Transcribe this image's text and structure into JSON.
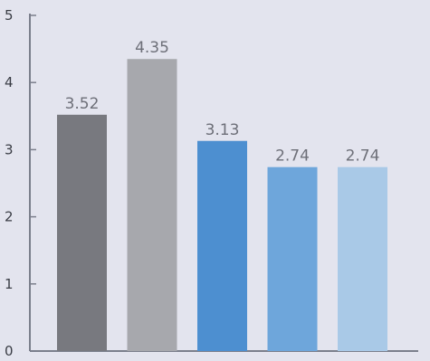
{
  "chart_data": {
    "type": "bar",
    "title": "",
    "xlabel": "",
    "ylabel": "",
    "categories": [
      "",
      "",
      "",
      "",
      ""
    ],
    "values": [
      3.52,
      4.35,
      3.13,
      2.74,
      2.74
    ],
    "value_labels": [
      "3.52",
      "4.35",
      "3.13",
      "2.74",
      "2.74"
    ],
    "bar_colors": [
      "#78797f",
      "#a7a8ad",
      "#4d8fd0",
      "#6ea6db",
      "#a9c9e7"
    ],
    "ylim": [
      0,
      5
    ],
    "yticks": [
      0,
      1,
      2,
      3,
      4,
      5
    ],
    "ytick_labels": [
      "0",
      "1",
      "2",
      "3",
      "4",
      "5"
    ],
    "grid": false,
    "legend": "none"
  }
}
